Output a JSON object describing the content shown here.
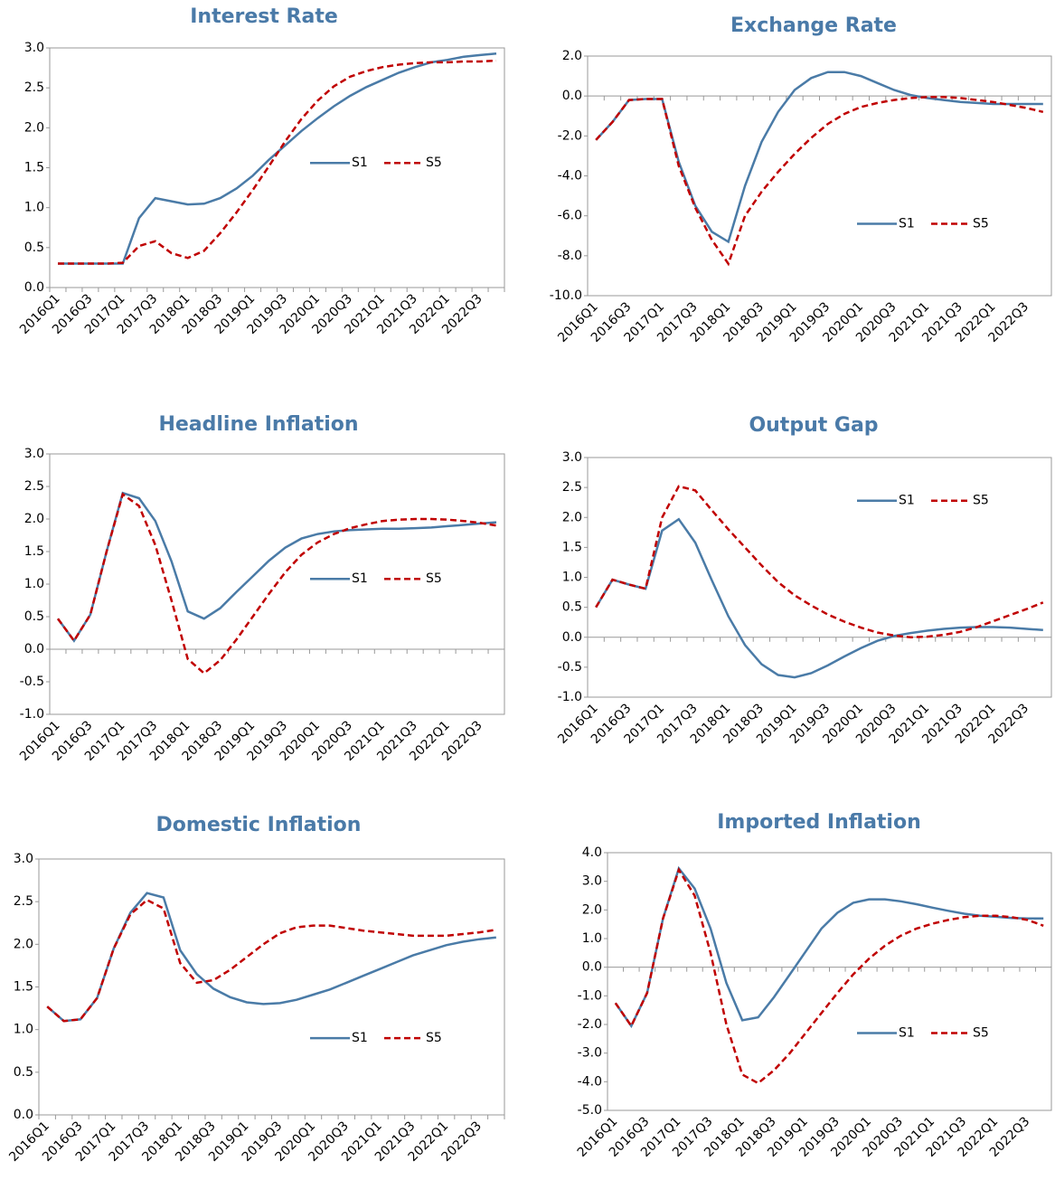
{
  "chart_data": [
    {
      "type": "line",
      "title": "Interest Rate",
      "legend": "center right",
      "categories": [
        "2016Q1",
        null,
        "2016Q3",
        null,
        "2017Q1",
        null,
        "2017Q3",
        null,
        "2018Q1",
        null,
        "2018Q3",
        null,
        "2019Q1",
        null,
        "2019Q3",
        null,
        "2020Q1",
        null,
        "2020Q3",
        null,
        "2021Q1",
        null,
        "2021Q3",
        null,
        "2022Q1",
        null,
        "2022Q3",
        null
      ],
      "ylim": [
        0,
        3
      ],
      "yticks": [
        {
          "value": 0,
          "label": "0.0"
        },
        {
          "value": 0.5,
          "label": "0.5"
        },
        {
          "value": 1,
          "label": "1.0"
        },
        {
          "value": 1.5,
          "label": "1.5"
        },
        {
          "value": 2,
          "label": "2.0"
        },
        {
          "value": 2.5,
          "label": "2.5"
        },
        {
          "value": 3,
          "label": "3.0"
        }
      ],
      "series": [
        {
          "name": "S1",
          "color": "#4a7ba7",
          "style": "solid",
          "values": [
            0.3,
            0.3,
            0.3,
            0.3,
            0.3,
            0.87,
            1.12,
            1.08,
            1.04,
            1.05,
            1.12,
            1.24,
            1.4,
            1.6,
            1.78,
            1.96,
            2.12,
            2.27,
            2.4,
            2.51,
            2.6,
            2.69,
            2.76,
            2.82,
            2.85,
            2.89,
            2.91,
            2.93
          ]
        },
        {
          "name": "S5",
          "color": "#c00000",
          "style": "dashed",
          "values": [
            0.3,
            0.3,
            0.3,
            0.3,
            0.31,
            0.52,
            0.58,
            0.43,
            0.37,
            0.46,
            0.68,
            0.94,
            1.22,
            1.52,
            1.83,
            2.11,
            2.34,
            2.52,
            2.64,
            2.71,
            2.76,
            2.79,
            2.81,
            2.82,
            2.82,
            2.83,
            2.83,
            2.84
          ]
        }
      ]
    },
    {
      "type": "line",
      "title": "Exchange Rate",
      "legend": "lower right",
      "categories": [
        "2016Q1",
        null,
        "2016Q3",
        null,
        "2017Q1",
        null,
        "2017Q3",
        null,
        "2018Q1",
        null,
        "2018Q3",
        null,
        "2019Q1",
        null,
        "2019Q3",
        null,
        "2020Q1",
        null,
        "2020Q3",
        null,
        "2021Q1",
        null,
        "2021Q3",
        null,
        "2022Q1",
        null,
        "2022Q3",
        null
      ],
      "ylim": [
        -10,
        2
      ],
      "yticks": [
        {
          "value": -10,
          "label": "-10.0"
        },
        {
          "value": -8,
          "label": "-8.0"
        },
        {
          "value": -6,
          "label": "-6.0"
        },
        {
          "value": -4,
          "label": "-4.0"
        },
        {
          "value": -2,
          "label": "-2.0"
        },
        {
          "value": 0,
          "label": "0.0"
        },
        {
          "value": 2,
          "label": "2.0"
        }
      ],
      "series": [
        {
          "name": "S1",
          "color": "#4a7ba7",
          "style": "solid",
          "values": [
            -2.2,
            -1.3,
            -0.2,
            -0.15,
            -0.15,
            -3.3,
            -5.5,
            -6.8,
            -7.3,
            -4.5,
            -2.3,
            -0.8,
            0.3,
            0.9,
            1.2,
            1.2,
            1.0,
            0.65,
            0.3,
            0.05,
            -0.1,
            -0.2,
            -0.3,
            -0.35,
            -0.4,
            -0.4,
            -0.4,
            -0.4
          ]
        },
        {
          "name": "S5",
          "color": "#c00000",
          "style": "dashed",
          "values": [
            -2.2,
            -1.3,
            -0.2,
            -0.15,
            -0.15,
            -3.5,
            -5.6,
            -7.2,
            -8.4,
            -6.0,
            -4.8,
            -3.8,
            -2.9,
            -2.1,
            -1.4,
            -0.9,
            -0.55,
            -0.35,
            -0.2,
            -0.1,
            -0.05,
            -0.05,
            -0.1,
            -0.2,
            -0.3,
            -0.45,
            -0.6,
            -0.8
          ]
        }
      ]
    },
    {
      "type": "line",
      "title": "Headline Inflation",
      "legend": "center right",
      "categories": [
        "2016Q1",
        null,
        "2016Q3",
        null,
        "2017Q1",
        null,
        "2017Q3",
        null,
        "2018Q1",
        null,
        "2018Q3",
        null,
        "2019Q1",
        null,
        "2019Q3",
        null,
        "2020Q1",
        null,
        "2020Q3",
        null,
        "2021Q1",
        null,
        "2021Q3",
        null,
        "2022Q1",
        null,
        "2022Q3",
        null
      ],
      "ylim": [
        -1,
        3
      ],
      "yticks": [
        {
          "value": -1,
          "label": "-1.0"
        },
        {
          "value": -0.5,
          "label": "-0.5"
        },
        {
          "value": 0,
          "label": "0.0"
        },
        {
          "value": 0.5,
          "label": "0.5"
        },
        {
          "value": 1,
          "label": "1.0"
        },
        {
          "value": 1.5,
          "label": "1.5"
        },
        {
          "value": 2,
          "label": "2.0"
        },
        {
          "value": 2.5,
          "label": "2.5"
        },
        {
          "value": 3,
          "label": "3.0"
        }
      ],
      "series": [
        {
          "name": "S1",
          "color": "#4a7ba7",
          "style": "solid",
          "values": [
            0.47,
            0.13,
            0.53,
            1.5,
            2.4,
            2.32,
            1.97,
            1.35,
            0.58,
            0.47,
            0.63,
            0.88,
            1.12,
            1.36,
            1.56,
            1.7,
            1.77,
            1.81,
            1.83,
            1.84,
            1.85,
            1.85,
            1.86,
            1.87,
            1.89,
            1.91,
            1.93,
            1.95
          ]
        },
        {
          "name": "S5",
          "color": "#c00000",
          "style": "dashed",
          "values": [
            0.47,
            0.13,
            0.53,
            1.5,
            2.38,
            2.2,
            1.6,
            0.75,
            -0.15,
            -0.37,
            -0.17,
            0.15,
            0.5,
            0.85,
            1.18,
            1.45,
            1.64,
            1.77,
            1.86,
            1.92,
            1.97,
            1.99,
            2.0,
            2.0,
            1.99,
            1.97,
            1.94,
            1.9
          ]
        }
      ]
    },
    {
      "type": "line",
      "title": "Output Gap",
      "legend": "upper right",
      "categories": [
        "2016Q1",
        null,
        "2016Q3",
        null,
        "2017Q1",
        null,
        "2017Q3",
        null,
        "2018Q1",
        null,
        "2018Q3",
        null,
        "2019Q1",
        null,
        "2019Q3",
        null,
        "2020Q1",
        null,
        "2020Q3",
        null,
        "2021Q1",
        null,
        "2021Q3",
        null,
        "2022Q1",
        null,
        "2022Q3",
        null
      ],
      "ylim": [
        -1,
        3
      ],
      "yticks": [
        {
          "value": -1,
          "label": "-1.0"
        },
        {
          "value": -0.5,
          "label": "-0.5"
        },
        {
          "value": 0,
          "label": "0.0"
        },
        {
          "value": 0.5,
          "label": "0.5"
        },
        {
          "value": 1,
          "label": "1.0"
        },
        {
          "value": 1.5,
          "label": "1.5"
        },
        {
          "value": 2,
          "label": "2.0"
        },
        {
          "value": 2.5,
          "label": "2.5"
        },
        {
          "value": 3,
          "label": "3.0"
        }
      ],
      "series": [
        {
          "name": "S1",
          "color": "#4a7ba7",
          "style": "solid",
          "values": [
            0.5,
            0.96,
            0.88,
            0.81,
            1.78,
            1.97,
            1.58,
            0.95,
            0.35,
            -0.13,
            -0.45,
            -0.63,
            -0.67,
            -0.6,
            -0.47,
            -0.32,
            -0.18,
            -0.06,
            0.02,
            0.07,
            0.11,
            0.14,
            0.16,
            0.17,
            0.17,
            0.16,
            0.14,
            0.12
          ]
        },
        {
          "name": "S5",
          "color": "#c00000",
          "style": "dashed",
          "values": [
            0.5,
            0.96,
            0.88,
            0.81,
            2.0,
            2.52,
            2.45,
            2.12,
            1.8,
            1.5,
            1.2,
            0.92,
            0.7,
            0.53,
            0.38,
            0.26,
            0.16,
            0.08,
            0.03,
            0,
            0.01,
            0.04,
            0.09,
            0.17,
            0.27,
            0.37,
            0.47,
            0.58
          ]
        }
      ]
    },
    {
      "type": "line",
      "title": "Domestic Inflation",
      "legend": "lower right",
      "categories": [
        "2016Q1",
        null,
        "2016Q3",
        null,
        "2017Q1",
        null,
        "2017Q3",
        null,
        "2018Q1",
        null,
        "2018Q3",
        null,
        "2019Q1",
        null,
        "2019Q3",
        null,
        "2020Q1",
        null,
        "2020Q3",
        null,
        "2021Q1",
        null,
        "2021Q3",
        null,
        "2022Q1",
        null,
        "2022Q3",
        null
      ],
      "ylim": [
        0,
        3
      ],
      "yticks": [
        {
          "value": 0,
          "label": "0.0"
        },
        {
          "value": 0.5,
          "label": "0.5"
        },
        {
          "value": 1,
          "label": "1.0"
        },
        {
          "value": 1.5,
          "label": "1.5"
        },
        {
          "value": 2,
          "label": "2.0"
        },
        {
          "value": 2.5,
          "label": "2.5"
        },
        {
          "value": 3,
          "label": "3.0"
        }
      ],
      "series": [
        {
          "name": "S1",
          "color": "#4a7ba7",
          "style": "solid",
          "values": [
            1.27,
            1.1,
            1.12,
            1.37,
            1.95,
            2.37,
            2.6,
            2.55,
            1.93,
            1.65,
            1.48,
            1.38,
            1.32,
            1.3,
            1.31,
            1.35,
            1.41,
            1.47,
            1.55,
            1.63,
            1.71,
            1.79,
            1.87,
            1.93,
            1.99,
            2.03,
            2.06,
            2.08
          ]
        },
        {
          "name": "S5",
          "color": "#c00000",
          "style": "dashed",
          "values": [
            1.27,
            1.1,
            1.12,
            1.37,
            1.95,
            2.35,
            2.52,
            2.42,
            1.78,
            1.55,
            1.58,
            1.7,
            1.85,
            2.0,
            2.13,
            2.2,
            2.22,
            2.22,
            2.19,
            2.16,
            2.14,
            2.12,
            2.1,
            2.1,
            2.1,
            2.12,
            2.14,
            2.17
          ]
        }
      ]
    },
    {
      "type": "line",
      "title": "Imported Inflation",
      "legend": "lower right",
      "categories": [
        "2016Q1",
        null,
        "2016Q3",
        null,
        "2017Q1",
        null,
        "2017Q3",
        null,
        "2018Q1",
        null,
        "2018Q3",
        null,
        "2019Q1",
        null,
        "2019Q3",
        null,
        "2020Q1",
        null,
        "2020Q3",
        null,
        "2021Q1",
        null,
        "2021Q3",
        null,
        "2022Q1",
        null,
        "2022Q3",
        null
      ],
      "ylim": [
        -5,
        4
      ],
      "yticks": [
        {
          "value": -5,
          "label": "-5.0"
        },
        {
          "value": -4,
          "label": "-4.0"
        },
        {
          "value": -3,
          "label": "-3.0"
        },
        {
          "value": -2,
          "label": "-2.0"
        },
        {
          "value": -1,
          "label": "-1.0"
        },
        {
          "value": 0,
          "label": "0.0"
        },
        {
          "value": 1,
          "label": "1.0"
        },
        {
          "value": 2,
          "label": "2.0"
        },
        {
          "value": 3,
          "label": "3.0"
        },
        {
          "value": 4,
          "label": "4.0"
        }
      ],
      "series": [
        {
          "name": "S1",
          "color": "#4a7ba7",
          "style": "solid",
          "values": [
            -1.25,
            -2.05,
            -0.9,
            1.7,
            3.45,
            2.75,
            1.35,
            -0.55,
            -1.85,
            -1.75,
            -1.05,
            -0.25,
            0.55,
            1.35,
            1.9,
            2.25,
            2.37,
            2.37,
            2.3,
            2.2,
            2.08,
            1.97,
            1.87,
            1.8,
            1.76,
            1.72,
            1.7,
            1.7
          ]
        },
        {
          "name": "S5",
          "color": "#c00000",
          "style": "dashed",
          "values": [
            -1.25,
            -2.05,
            -0.9,
            1.7,
            3.4,
            2.5,
            0.5,
            -2.0,
            -3.75,
            -4.05,
            -3.6,
            -3.0,
            -2.3,
            -1.6,
            -0.9,
            -0.25,
            0.3,
            0.75,
            1.1,
            1.35,
            1.52,
            1.65,
            1.75,
            1.8,
            1.8,
            1.75,
            1.65,
            1.45
          ]
        }
      ]
    }
  ]
}
